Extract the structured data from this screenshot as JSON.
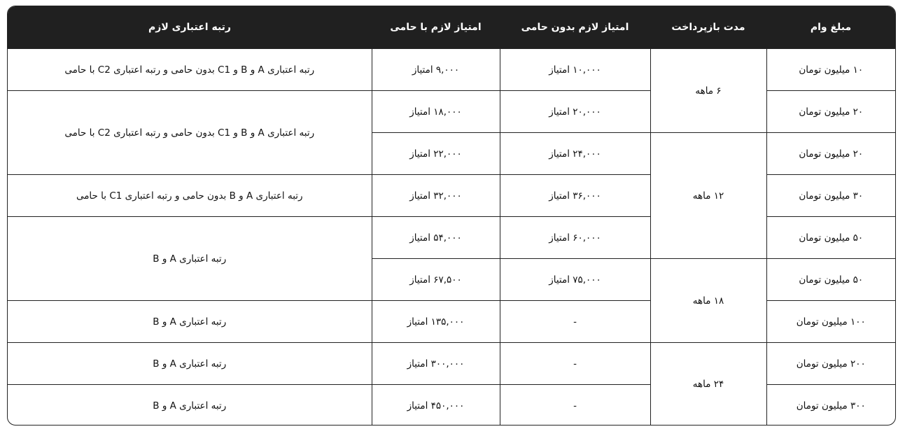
{
  "headers": [
    "مبلغ وام",
    "مدت بازپرداخت",
    "امتیاز لازم بدون حامی",
    "امتیاز لازم با حامی",
    "رتبه اعتباری لازم"
  ],
  "amounts": [
    "۱۰ میلیون تومان",
    "۲۰ میلیون تومان",
    "۲۰ میلیون تومان",
    "۳۰ میلیون تومان",
    "۵۰ میلیون تومان",
    "۵۰ میلیون تومان",
    "۱۰۰ میلیون تومان",
    "۲۰۰ میلیون تومان",
    "۳۰۰ میلیون تومان"
  ],
  "durations": [
    "۶ ماهه",
    "۱۲ ماهه",
    "۱۸ ماهه",
    "۲۴ ماهه"
  ],
  "without_guarantor": [
    "۱۰,۰۰۰ امتیاز",
    "۲۰,۰۰۰ امتیاز",
    "۲۴,۰۰۰ امتیاز",
    "۳۶,۰۰۰ امتیاز",
    "۶۰,۰۰۰ امتیاز",
    "۷۵,۰۰۰ امتیاز",
    "-",
    "-",
    "-"
  ],
  "with_guarantor": [
    "۹,۰۰۰ امتیاز",
    "۱۸,۰۰۰ امتیاز",
    "۲۲,۰۰۰ امتیاز",
    "۳۲,۰۰۰ امتیاز",
    "۵۴,۰۰۰ امتیاز",
    "۶۷,۵۰۰ امتیاز",
    "۱۳۵,۰۰۰ امتیاز",
    "۳۰۰,۰۰۰ امتیاز",
    "۴۵۰,۰۰۰ امتیاز"
  ],
  "credit": [
    "رتبه اعتباری A و B و C1 بدون حامی و رتبه اعتباری C2 با حامی",
    "رتبه اعتباری A و B و C1 بدون حامی و رتبه اعتباری C2 با حامی",
    "رتبه اعتباری A و B بدون حامی و رتبه اعتباری C1 با حامی",
    "رتبه اعتباری A و B",
    "رتبه اعتباری A و B",
    "رتبه اعتباری A و B",
    "رتبه اعتباری A و B"
  ]
}
